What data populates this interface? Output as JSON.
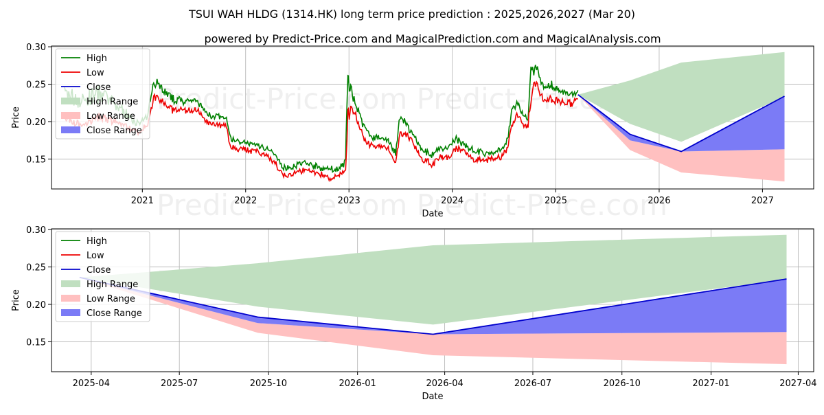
{
  "title": "TSUI WAH HLDG (1314.HK) long term price prediction : 2025,2026,2027 (Mar 20)",
  "subtitle": "powered by Predict-Price.com and MagicalPrediction.com and MagicalAnalysis.com",
  "watermark": "Predict-Price.com",
  "colors": {
    "high": "#008000",
    "low": "#ee0000",
    "close": "#0000cc",
    "high_range": "#c0dfc0",
    "low_range": "#ffc0c0",
    "close_range": "#7b7bf6",
    "grid": "#b0b0b0"
  },
  "chart_data": [
    {
      "type": "line",
      "panel": "top",
      "xlabel": "Date",
      "ylabel": "Price",
      "xlim": [
        "2020-02-15",
        "2027-07-01"
      ],
      "ylim": [
        0.11,
        0.301
      ],
      "x_ticks": [
        "2021",
        "2022",
        "2023",
        "2024",
        "2025",
        "2026",
        "2027"
      ],
      "y_ticks": [
        "0.15",
        "0.20",
        "0.25",
        "0.30"
      ],
      "grid": true,
      "legend_position": "top-left",
      "legend": [
        "High",
        "Low",
        "Close",
        "High Range",
        "Low Range",
        "Close Range"
      ],
      "history": [
        [
          "2020-04-01",
          0.215,
          0.25,
          0.2
        ],
        [
          "2020-06-01",
          0.205,
          0.24,
          0.19
        ],
        [
          "2020-08-01",
          0.215,
          0.25,
          0.2
        ],
        [
          "2020-10-15",
          0.205,
          0.225,
          0.195
        ],
        [
          "2020-12-20",
          0.19,
          0.2,
          0.182
        ],
        [
          "2021-01-20",
          0.2,
          0.21,
          0.195
        ],
        [
          "2021-02-10",
          0.24,
          0.27,
          0.225
        ],
        [
          "2021-03-01",
          0.238,
          0.255,
          0.225
        ],
        [
          "2021-04-15",
          0.222,
          0.235,
          0.212
        ],
        [
          "2021-06-01",
          0.22,
          0.232,
          0.212
        ],
        [
          "2021-07-15",
          0.222,
          0.23,
          0.212
        ],
        [
          "2021-08-15",
          0.205,
          0.215,
          0.195
        ],
        [
          "2021-10-01",
          0.198,
          0.21,
          0.192
        ],
        [
          "2021-10-25",
          0.198,
          0.205,
          0.19
        ],
        [
          "2021-11-10",
          0.172,
          0.18,
          0.16
        ],
        [
          "2021-12-15",
          0.168,
          0.175,
          0.16
        ],
        [
          "2022-02-01",
          0.165,
          0.172,
          0.158
        ],
        [
          "2022-03-15",
          0.16,
          0.168,
          0.152
        ],
        [
          "2022-04-15",
          0.15,
          0.158,
          0.142
        ],
        [
          "2022-05-15",
          0.132,
          0.142,
          0.125
        ],
        [
          "2022-06-20",
          0.135,
          0.145,
          0.128
        ],
        [
          "2022-08-01",
          0.14,
          0.148,
          0.132
        ],
        [
          "2022-09-15",
          0.135,
          0.142,
          0.128
        ],
        [
          "2022-10-20",
          0.13,
          0.14,
          0.12
        ],
        [
          "2022-11-25",
          0.13,
          0.14,
          0.125
        ],
        [
          "2022-12-20",
          0.14,
          0.15,
          0.132
        ],
        [
          "2022-12-28",
          0.24,
          0.27,
          0.175
        ],
        [
          "2023-01-05",
          0.225,
          0.258,
          0.212
        ],
        [
          "2023-01-25",
          0.215,
          0.23,
          0.205
        ],
        [
          "2023-02-15",
          0.19,
          0.205,
          0.18
        ],
        [
          "2023-03-15",
          0.175,
          0.185,
          0.165
        ],
        [
          "2023-04-15",
          0.172,
          0.182,
          0.165
        ],
        [
          "2023-05-20",
          0.17,
          0.18,
          0.162
        ],
        [
          "2023-06-15",
          0.15,
          0.162,
          0.138
        ],
        [
          "2023-07-01",
          0.192,
          0.212,
          0.18
        ],
        [
          "2023-07-25",
          0.188,
          0.198,
          0.178
        ],
        [
          "2023-08-20",
          0.175,
          0.185,
          0.165
        ],
        [
          "2023-09-15",
          0.155,
          0.165,
          0.145
        ],
        [
          "2023-10-20",
          0.15,
          0.16,
          0.14
        ],
        [
          "2023-11-20",
          0.158,
          0.168,
          0.148
        ],
        [
          "2023-12-20",
          0.16,
          0.17,
          0.15
        ],
        [
          "2024-01-15",
          0.17,
          0.18,
          0.162
        ],
        [
          "2024-02-20",
          0.162,
          0.172,
          0.155
        ],
        [
          "2024-03-20",
          0.155,
          0.165,
          0.145
        ],
        [
          "2024-04-25",
          0.152,
          0.16,
          0.145
        ],
        [
          "2024-05-25",
          0.155,
          0.162,
          0.148
        ],
        [
          "2024-06-25",
          0.158,
          0.165,
          0.15
        ],
        [
          "2024-07-15",
          0.17,
          0.18,
          0.162
        ],
        [
          "2024-08-01",
          0.208,
          0.225,
          0.195
        ],
        [
          "2024-08-20",
          0.215,
          0.228,
          0.205
        ],
        [
          "2024-09-10",
          0.2,
          0.21,
          0.192
        ],
        [
          "2024-09-25",
          0.198,
          0.205,
          0.19
        ],
        [
          "2024-10-05",
          0.262,
          0.278,
          0.22
        ],
        [
          "2024-10-15",
          0.255,
          0.27,
          0.24
        ],
        [
          "2024-10-25",
          0.262,
          0.278,
          0.245
        ],
        [
          "2024-11-10",
          0.245,
          0.262,
          0.23
        ],
        [
          "2024-11-25",
          0.24,
          0.25,
          0.225
        ],
        [
          "2024-12-15",
          0.238,
          0.255,
          0.225
        ],
        [
          "2025-01-10",
          0.235,
          0.245,
          0.22
        ],
        [
          "2025-02-05",
          0.232,
          0.242,
          0.222
        ],
        [
          "2025-02-25",
          0.23,
          0.24,
          0.218
        ],
        [
          "2025-03-20",
          0.236,
          0.242,
          0.23
        ]
      ],
      "forecast": [
        [
          "2025-03-20",
          0.236,
          0.236,
          0.236,
          0.236,
          0.236,
          0.236
        ],
        [
          "2025-09-20",
          0.255,
          0.197,
          0.183,
          0.162,
          0.175,
          0.183
        ],
        [
          "2026-03-20",
          0.279,
          0.173,
          0.16,
          0.132,
          0.16,
          0.16
        ],
        [
          "2027-03-20",
          0.293,
          0.233,
          0.234,
          0.12,
          0.163,
          0.234
        ]
      ],
      "forecast_columns": [
        "date",
        "high_range_top",
        "high_range_bottom",
        "close",
        "low_range_bottom",
        "close_range_bottom",
        "close_range_top"
      ]
    },
    {
      "type": "line",
      "panel": "bottom",
      "xlabel": "Date",
      "ylabel": "Price",
      "xlim": [
        "2025-02-19",
        "2027-04-17"
      ],
      "ylim": [
        0.11,
        0.301
      ],
      "x_ticks": [
        "2025-04",
        "2025-07",
        "2025-10",
        "2026-01",
        "2026-04",
        "2026-07",
        "2026-10",
        "2027-01",
        "2027-04"
      ],
      "y_ticks": [
        "0.15",
        "0.20",
        "0.25",
        "0.30"
      ],
      "grid": true,
      "legend_position": "top-left",
      "legend": [
        "High",
        "Low",
        "Close",
        "High Range",
        "Low Range",
        "Close Range"
      ],
      "close": [
        [
          "2025-03-20",
          0.236
        ],
        [
          "2025-09-20",
          0.183
        ],
        [
          "2026-03-20",
          0.16
        ],
        [
          "2027-03-20",
          0.234
        ]
      ]
    }
  ]
}
